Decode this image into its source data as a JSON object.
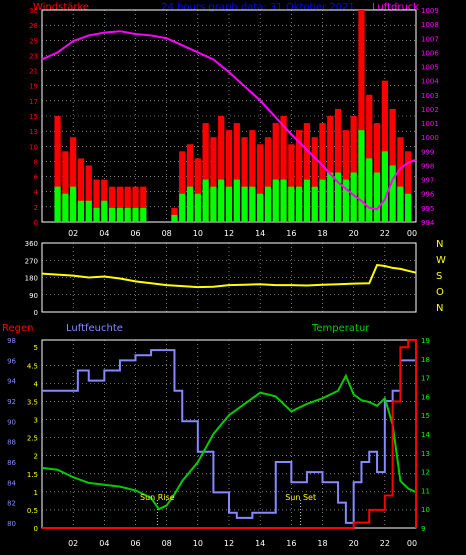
{
  "header": {
    "left": "Windstärke",
    "center": "24 hours graph data: 31 Oktober 2021",
    "right": "Luftdruck"
  },
  "colors": {
    "wind_red": "#ff0000",
    "wind_green": "#00ff00",
    "pressure": "#ff00ff",
    "direction": "#ffff00",
    "humidity": "#8888ff",
    "temperature": "#00cc00",
    "rain": "#ff0000",
    "grid": "#cccccc",
    "axis": "#ffffff"
  },
  "chart_data": [
    {
      "type": "bar",
      "ylabel_left": "Windstärke",
      "ylabel_right": "Luftdruck",
      "x_tick_labels": [
        "02",
        "04",
        "06",
        "08",
        "10",
        "12",
        "14",
        "16",
        "18",
        "20",
        "22",
        "00"
      ],
      "y_left_ticks": [
        "0",
        "2",
        "4",
        "6",
        "8",
        "10",
        "13",
        "15",
        "17",
        "19",
        "21",
        "23",
        "25",
        "28",
        "30"
      ],
      "y_right_ticks": [
        "994",
        "995",
        "996",
        "997",
        "998",
        "999",
        "1000",
        "1001",
        "1002",
        "1003",
        "1004",
        "1005",
        "1006",
        "1007",
        "1008",
        "1009"
      ],
      "ylim_left": [
        0,
        30
      ],
      "ylim_right": [
        994,
        1009
      ],
      "series": [
        {
          "name": "gusts",
          "kind": "bars",
          "x": [
            1.0,
            1.5,
            2.0,
            2.5,
            3.0,
            3.5,
            4.0,
            4.5,
            5.0,
            5.5,
            6.0,
            6.5,
            7.0,
            7.5,
            8.0,
            8.5,
            9.0,
            9.5,
            10.0,
            10.5,
            11.0,
            11.5,
            12.0,
            12.5,
            13.0,
            13.5,
            14.0,
            14.5,
            15.0,
            15.5,
            16.0,
            16.5,
            17.0,
            17.5,
            18.0,
            18.5,
            19.0,
            19.5,
            20.0,
            20.5,
            21.0,
            21.5,
            22.0,
            22.5,
            23.0,
            23.5
          ],
          "values": [
            15,
            10,
            12,
            9,
            8,
            6,
            6,
            5,
            5,
            5,
            5,
            5,
            0,
            0,
            0,
            2,
            10,
            11,
            9,
            14,
            12,
            15,
            13,
            14,
            12,
            13,
            11,
            12,
            14,
            15,
            11,
            13,
            14,
            12,
            14,
            15,
            16,
            13,
            15,
            30,
            18,
            14,
            20,
            16,
            12,
            10
          ]
        },
        {
          "name": "average",
          "kind": "bars",
          "x": [
            1.0,
            1.5,
            2.0,
            2.5,
            3.0,
            3.5,
            4.0,
            4.5,
            5.0,
            5.5,
            6.0,
            6.5,
            7.0,
            7.5,
            8.0,
            8.5,
            9.0,
            9.5,
            10.0,
            10.5,
            11.0,
            11.5,
            12.0,
            12.5,
            13.0,
            13.5,
            14.0,
            14.5,
            15.0,
            15.5,
            16.0,
            16.5,
            17.0,
            17.5,
            18.0,
            18.5,
            19.0,
            19.5,
            20.0,
            20.5,
            21.0,
            21.5,
            22.0,
            22.5,
            23.0,
            23.5
          ],
          "values": [
            5,
            4,
            5,
            3,
            3,
            2,
            3,
            2,
            2,
            2,
            2,
            2,
            0,
            0,
            0,
            1,
            4,
            5,
            4,
            6,
            5,
            6,
            5,
            6,
            5,
            5,
            4,
            5,
            6,
            6,
            5,
            5,
            6,
            5,
            6,
            7,
            7,
            6,
            7,
            13,
            9,
            7,
            10,
            8,
            5,
            4
          ]
        },
        {
          "name": "pressure",
          "kind": "line",
          "axis": "right",
          "x": [
            0,
            1,
            2,
            3,
            4,
            5,
            6,
            7,
            8,
            9,
            10,
            11,
            12,
            13,
            14,
            15,
            16,
            17,
            18,
            19,
            20,
            20.5,
            21,
            21.5,
            22,
            22.5,
            23,
            23.5,
            24
          ],
          "values": [
            1005.5,
            1006.0,
            1006.8,
            1007.2,
            1007.4,
            1007.5,
            1007.3,
            1007.2,
            1007.0,
            1006.5,
            1006.0,
            1005.5,
            1004.6,
            1003.6,
            1002.6,
            1001.4,
            1000.2,
            999.1,
            998.0,
            996.8,
            995.9,
            995.5,
            995.0,
            994.9,
            995.6,
            997.0,
            997.8,
            998.2,
            998.4
          ]
        }
      ]
    },
    {
      "type": "line",
      "ylabel_right": "N W S O N",
      "x_tick_labels": [],
      "y_left_ticks": [
        "0",
        "90",
        "180",
        "270",
        "360"
      ],
      "y_right_labels": [
        "N",
        "W",
        "S",
        "O",
        "N"
      ],
      "ylim": [
        0,
        360
      ],
      "series": [
        {
          "name": "wind_direction",
          "x": [
            0,
            1,
            2,
            3,
            4,
            5,
            6,
            7,
            8,
            9,
            10,
            11,
            12,
            13,
            14,
            15,
            16,
            17,
            18,
            19,
            20,
            21,
            21.5,
            22,
            22.5,
            23,
            23.5,
            24
          ],
          "values": [
            200,
            195,
            190,
            180,
            185,
            175,
            160,
            150,
            140,
            135,
            130,
            132,
            140,
            142,
            145,
            140,
            140,
            138,
            142,
            145,
            148,
            150,
            245,
            240,
            230,
            225,
            215,
            205
          ]
        }
      ]
    },
    {
      "type": "line",
      "title_left": "Regen",
      "title_center": "Luftfeuchte",
      "title_right": "Temperatur",
      "x_tick_labels": [
        "02",
        "04",
        "06",
        "08",
        "10",
        "12",
        "14",
        "16",
        "18",
        "20",
        "22",
        "00"
      ],
      "y_left_ticks_humidity": [
        "80",
        "82",
        "84",
        "86",
        "88",
        "90",
        "92",
        "94",
        "96",
        "98"
      ],
      "y_left_ticks_rain": [
        "0",
        "0.5",
        "1",
        "1.5",
        "2",
        "2.5",
        "3",
        "3.5",
        "4",
        "4.5",
        "5"
      ],
      "y_right_ticks": [
        "9",
        "10",
        "11",
        "12",
        "13",
        "14",
        "15",
        "16",
        "17",
        "18",
        "19"
      ],
      "ylim_humidity": [
        79.5,
        98
      ],
      "ylim_rain": [
        0,
        5.2
      ],
      "ylim_temp": [
        9,
        19
      ],
      "annotations": [
        {
          "text": "Sun Rise",
          "x": 7.4
        },
        {
          "text": "Sun Set",
          "x": 16.6
        }
      ],
      "series": [
        {
          "name": "Luftfeuchte",
          "x": [
            0,
            2.0,
            2.3,
            3.0,
            4.0,
            5.0,
            6.0,
            7.0,
            8.0,
            8.5,
            9.0,
            10.0,
            11.0,
            12.0,
            12.5,
            13.0,
            13.5,
            14.0,
            15.0,
            16.0,
            17.0,
            18.0,
            19.0,
            19.5,
            20.0,
            20.5,
            21.0,
            21.5,
            22.0,
            22.5,
            23.0,
            23.5,
            24.0
          ],
          "values": [
            93,
            93,
            95,
            94,
            95,
            96,
            96.5,
            97,
            97,
            93,
            90,
            87,
            83,
            81,
            80.5,
            80.5,
            81,
            81,
            86,
            84,
            85,
            84,
            82,
            80,
            84,
            86,
            87,
            85,
            92,
            93,
            96,
            96,
            96
          ]
        },
        {
          "name": "Temperatur",
          "x": [
            0,
            1,
            2,
            3,
            4,
            5,
            6,
            7,
            7.5,
            8,
            8.5,
            9,
            10,
            11,
            12,
            13,
            14,
            15,
            16,
            17,
            18,
            19,
            19.5,
            20,
            20.5,
            21,
            21.5,
            22,
            22.5,
            23,
            23.5,
            24
          ],
          "values": [
            12.2,
            12.1,
            11.7,
            11.4,
            11.3,
            11.2,
            11.0,
            10.6,
            10.0,
            10.2,
            10.8,
            11.5,
            12.5,
            14.0,
            15.0,
            15.6,
            16.2,
            16.0,
            15.2,
            15.6,
            15.9,
            16.3,
            17.1,
            16.1,
            15.8,
            15.7,
            15.5,
            15.9,
            14.5,
            11.5,
            11.1,
            10.9
          ]
        },
        {
          "name": "Regen",
          "x": [
            0,
            19.5,
            20.0,
            21.0,
            22.0,
            22.5,
            23.0,
            23.5,
            23.9,
            24
          ],
          "values": [
            0,
            0,
            0.15,
            0.5,
            0.9,
            3.5,
            5.0,
            5.2,
            5.2,
            0
          ]
        }
      ]
    }
  ]
}
